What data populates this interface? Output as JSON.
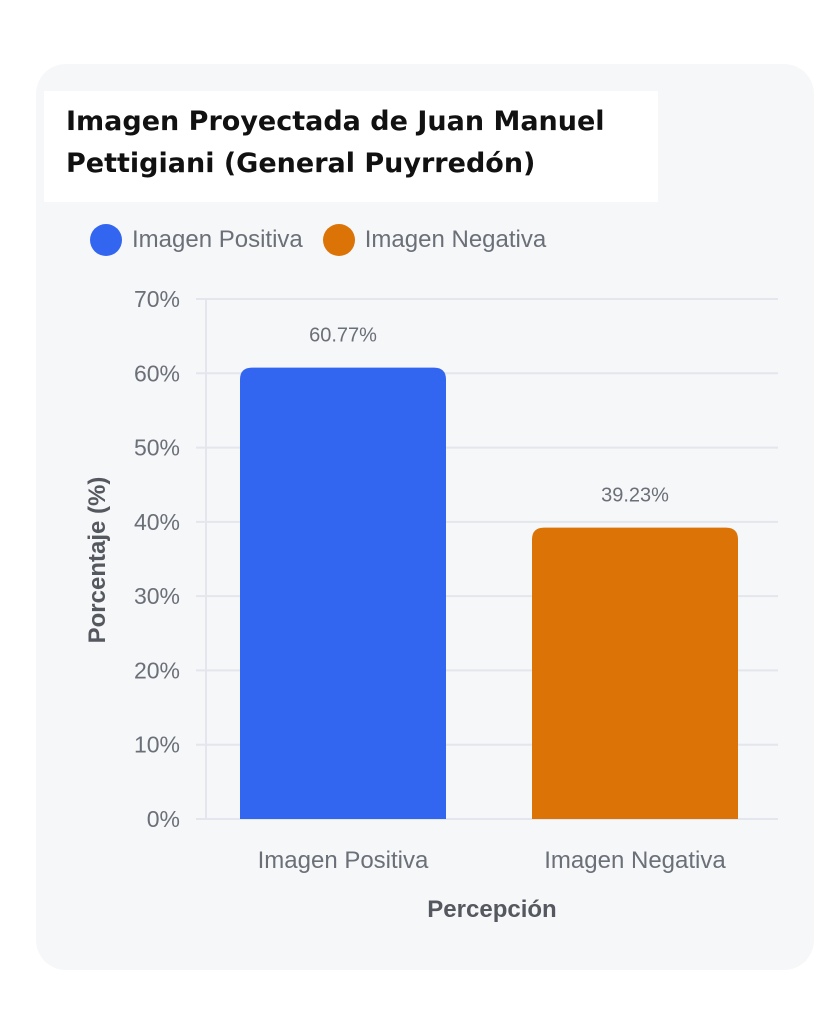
{
  "chart_data": {
    "type": "bar",
    "title": "Imagen Proyectada de Juan Manuel Pettigiani (General Puyrredón)",
    "xlabel": "Percepción",
    "ylabel": "Porcentaje (%)",
    "categories": [
      "Imagen Positiva",
      "Imagen Negativa"
    ],
    "values": [
      60.77,
      39.23
    ],
    "data_labels": [
      "60.77%",
      "39.23%"
    ],
    "colors": [
      "#3366f0",
      "#dc7306"
    ],
    "ylim": [
      0,
      70
    ],
    "yticks": [
      0,
      10,
      20,
      30,
      40,
      50,
      60,
      70
    ],
    "ytick_labels": [
      "0%",
      "10%",
      "20%",
      "30%",
      "40%",
      "50%",
      "60%",
      "70%"
    ],
    "grid": true,
    "legend": {
      "placement": "top-left",
      "entries": [
        {
          "label": "Imagen Positiva",
          "color": "#3366f0"
        },
        {
          "label": "Imagen Negativa",
          "color": "#dc7306"
        }
      ]
    }
  }
}
